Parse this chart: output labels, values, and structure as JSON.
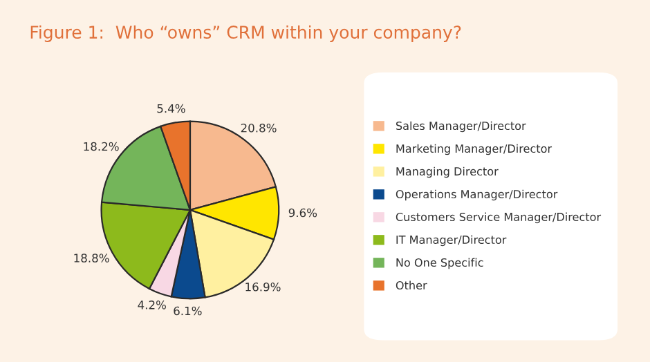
{
  "chart_data": {
    "type": "pie",
    "title": "Figure 1:  Who “owns” CRM within your company?",
    "categories": [
      "Sales Manager/Director",
      "Marketing Manager/Director",
      "Managing Director",
      "Operations Manager/Director",
      "Customers Service Manager/Director",
      "IT Manager/Director",
      "No One Specific",
      "Other"
    ],
    "values": [
      20.8,
      9.6,
      16.9,
      6.1,
      4.2,
      18.8,
      18.2,
      5.4
    ],
    "value_labels": [
      "20.8%",
      "9.6%",
      "16.9%",
      "6.1%",
      "4.2%",
      "18.8%",
      "18.2%",
      "5.4%"
    ],
    "colors": [
      "#f7b98f",
      "#ffe600",
      "#fff0a0",
      "#0b4a8e",
      "#f8d8e4",
      "#8dba1c",
      "#74b55a",
      "#e8732c"
    ],
    "legend": "right"
  }
}
